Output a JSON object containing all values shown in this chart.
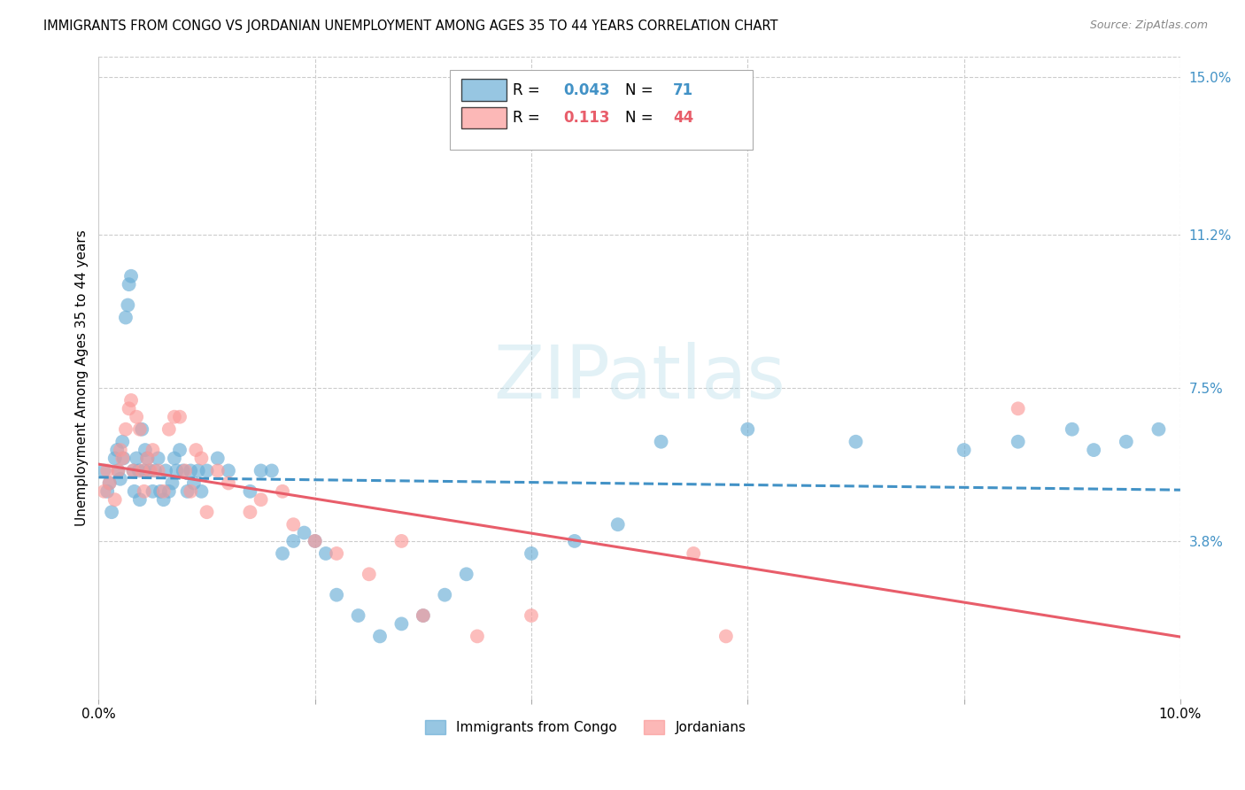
{
  "title": "IMMIGRANTS FROM CONGO VS JORDANIAN UNEMPLOYMENT AMONG AGES 35 TO 44 YEARS CORRELATION CHART",
  "source": "Source: ZipAtlas.com",
  "ylabel_label": "Unemployment Among Ages 35 to 44 years",
  "right_yticks": [
    3.8,
    7.5,
    11.2,
    15.0
  ],
  "right_ytick_labels": [
    "3.8%",
    "7.5%",
    "11.2%",
    "15.0%"
  ],
  "xmin": 0.0,
  "xmax": 10.0,
  "ymin": 0.0,
  "ymax": 15.5,
  "blue_R": "0.043",
  "blue_N": "71",
  "pink_R": "0.113",
  "pink_N": "44",
  "blue_color": "#6baed6",
  "pink_color": "#fb9a99",
  "blue_line_color": "#4292c6",
  "pink_line_color": "#e85d6a",
  "watermark": "ZIPatlas",
  "blue_scatter_x": [
    0.05,
    0.08,
    0.1,
    0.12,
    0.15,
    0.17,
    0.18,
    0.2,
    0.22,
    0.23,
    0.25,
    0.27,
    0.28,
    0.3,
    0.32,
    0.33,
    0.35,
    0.37,
    0.38,
    0.4,
    0.42,
    0.43,
    0.45,
    0.47,
    0.5,
    0.52,
    0.55,
    0.57,
    0.6,
    0.62,
    0.65,
    0.68,
    0.7,
    0.72,
    0.75,
    0.78,
    0.82,
    0.85,
    0.88,
    0.92,
    0.95,
    1.0,
    1.1,
    1.2,
    1.4,
    1.5,
    1.6,
    1.7,
    1.8,
    1.9,
    2.0,
    2.1,
    2.2,
    2.4,
    2.6,
    2.8,
    3.0,
    3.2,
    3.4,
    4.0,
    4.4,
    4.8,
    5.2,
    6.0,
    7.0,
    8.0,
    8.5,
    9.0,
    9.2,
    9.5,
    9.8
  ],
  "blue_scatter_y": [
    5.5,
    5.0,
    5.2,
    4.5,
    5.8,
    6.0,
    5.5,
    5.3,
    6.2,
    5.8,
    9.2,
    9.5,
    10.0,
    10.2,
    5.5,
    5.0,
    5.8,
    5.5,
    4.8,
    6.5,
    5.5,
    6.0,
    5.8,
    5.5,
    5.0,
    5.5,
    5.8,
    5.0,
    4.8,
    5.5,
    5.0,
    5.2,
    5.8,
    5.5,
    6.0,
    5.5,
    5.0,
    5.5,
    5.2,
    5.5,
    5.0,
    5.5,
    5.8,
    5.5,
    5.0,
    5.5,
    5.5,
    3.5,
    3.8,
    4.0,
    3.8,
    3.5,
    2.5,
    2.0,
    1.5,
    1.8,
    2.0,
    2.5,
    3.0,
    3.5,
    3.8,
    4.2,
    6.2,
    6.5,
    6.2,
    6.0,
    6.2,
    6.5,
    6.0,
    6.2,
    6.5
  ],
  "pink_scatter_x": [
    0.05,
    0.08,
    0.1,
    0.15,
    0.18,
    0.2,
    0.22,
    0.25,
    0.28,
    0.3,
    0.32,
    0.35,
    0.38,
    0.4,
    0.42,
    0.45,
    0.48,
    0.5,
    0.55,
    0.6,
    0.65,
    0.7,
    0.75,
    0.8,
    0.85,
    0.9,
    0.95,
    1.0,
    1.1,
    1.2,
    1.4,
    1.5,
    1.7,
    1.8,
    2.0,
    2.2,
    2.5,
    2.8,
    3.0,
    3.5,
    4.0,
    5.5,
    5.8,
    8.5
  ],
  "pink_scatter_y": [
    5.0,
    5.5,
    5.2,
    4.8,
    5.5,
    6.0,
    5.8,
    6.5,
    7.0,
    7.2,
    5.5,
    6.8,
    6.5,
    5.5,
    5.0,
    5.8,
    5.5,
    6.0,
    5.5,
    5.0,
    6.5,
    6.8,
    6.8,
    5.5,
    5.0,
    6.0,
    5.8,
    4.5,
    5.5,
    5.2,
    4.5,
    4.8,
    5.0,
    4.2,
    3.8,
    3.5,
    3.0,
    3.8,
    2.0,
    1.5,
    2.0,
    3.5,
    1.5,
    7.0
  ]
}
